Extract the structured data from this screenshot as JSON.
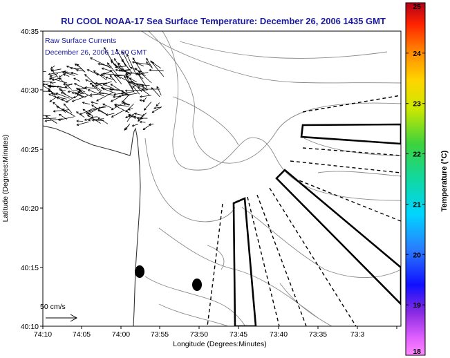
{
  "title": "RU COOL  NOAA-17  Sea Surface Temperature:  December 26, 2006 1435 GMT",
  "annotation": {
    "line1": "Raw Surface Currents",
    "line2": "December 26, 2006 14:00 GMT"
  },
  "scale_arrow_label": "50 cm/s",
  "axes": {
    "xlabel": "Longitude (Degrees:Minutes)",
    "ylabel": "Latitude (Degrees:Minutes)",
    "x_ticks": [
      "74:10",
      "74:05",
      "74:00",
      "73:55",
      "73:50",
      "73:45",
      "73:40",
      "73:35",
      "73:3"
    ],
    "y_ticks": [
      "40:35",
      "40:30",
      "40:25",
      "40:20",
      "40:15",
      "40:10"
    ]
  },
  "colorbar": {
    "label": "Temperature (°C)",
    "ticks": [
      "25",
      "24",
      "23",
      "22",
      "21",
      "20",
      "19",
      "18"
    ],
    "range": [
      18,
      25
    ]
  },
  "colors": {
    "title": "#1a1aa0",
    "contour": "#8a8a8a",
    "coast": "#333333",
    "vectors": "#000000"
  }
}
